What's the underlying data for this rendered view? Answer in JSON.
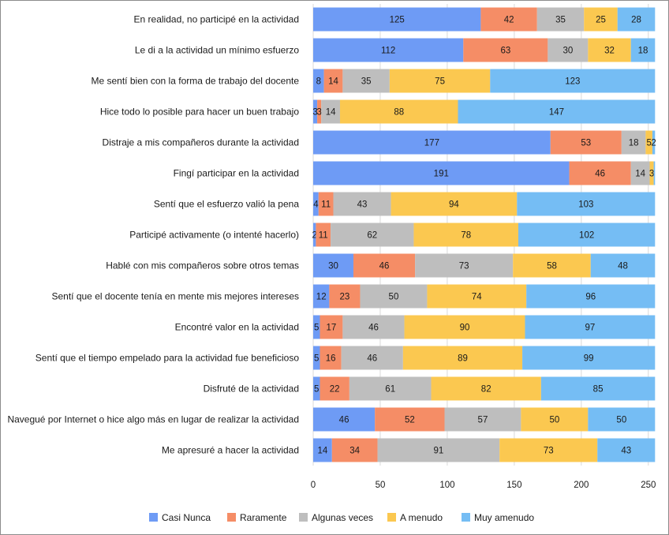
{
  "chart_data": {
    "type": "bar",
    "orientation": "horizontal",
    "stacked": true,
    "title": "",
    "xlabel": "",
    "ylabel": "",
    "xlim": [
      0,
      256
    ],
    "xticks": [
      0,
      50,
      100,
      150,
      200,
      250
    ],
    "grid": true,
    "legend_position": "bottom",
    "categories": [
      "En realidad, no participé en la actividad",
      "Le di a la actividad un mínimo esfuerzo",
      "Me sentí bien con la forma de trabajo del docente",
      "Hice todo lo posible para hacer un buen trabajo",
      "Distraje a mis compañeros durante la actividad",
      "Fingí participar en la actividad",
      "Sentí que el esfuerzo valió la pena",
      "Participé activamente (o intenté hacerlo)",
      "Hablé con mis compañeros sobre otros temas",
      "Sentí que el docente tenía en mente mis mejores intereses",
      "Encontré valor en la actividad",
      "Sentí que el tiempo empelado para la actividad fue beneficioso",
      "Disfruté de la actividad",
      "Navegué por Internet o hice algo más en lugar de realizar la actividad",
      "Me apresuré a hacer la actividad"
    ],
    "series": [
      {
        "name": "Casi Nunca",
        "color": "#6e9bf5",
        "values": [
          125,
          112,
          8,
          3,
          177,
          191,
          4,
          2,
          30,
          12,
          5,
          5,
          5,
          46,
          14
        ]
      },
      {
        "name": "Raramente",
        "color": "#f58d66",
        "values": [
          42,
          63,
          14,
          3,
          53,
          46,
          11,
          11,
          46,
          23,
          17,
          16,
          22,
          52,
          34
        ]
      },
      {
        "name": "Algunas veces",
        "color": "#bebebe",
        "values": [
          35,
          30,
          35,
          14,
          18,
          14,
          43,
          62,
          73,
          50,
          46,
          46,
          61,
          57,
          91
        ]
      },
      {
        "name": "A menudo",
        "color": "#fbc850",
        "values": [
          25,
          32,
          75,
          88,
          5,
          3,
          94,
          78,
          58,
          74,
          90,
          89,
          82,
          50,
          73
        ]
      },
      {
        "name": "Muy amenudo",
        "color": "#75bdf4",
        "values": [
          28,
          18,
          123,
          147,
          2,
          1,
          103,
          102,
          48,
          96,
          97,
          99,
          85,
          50,
          43
        ]
      }
    ],
    "segment_labels": [
      [
        "125",
        "42",
        "35",
        "25",
        "28"
      ],
      [
        "112",
        "63",
        "30",
        "32",
        "18"
      ],
      [
        "8",
        "14",
        "35",
        "75",
        "123"
      ],
      [
        "3",
        "3",
        "14",
        "88",
        "147"
      ],
      [
        "177",
        "53",
        "18",
        "5",
        "2"
      ],
      [
        "191",
        "46",
        "14",
        "3",
        ""
      ],
      [
        "4",
        "11",
        "43",
        "94",
        "103"
      ],
      [
        "2",
        "11",
        "62",
        "78",
        "102"
      ],
      [
        "30",
        "46",
        "73",
        "58",
        "48"
      ],
      [
        "12",
        "23",
        "50",
        "74",
        "96"
      ],
      [
        "5",
        "17",
        "46",
        "90",
        "97"
      ],
      [
        "5",
        "16",
        "46",
        "89",
        "99"
      ],
      [
        "5",
        "22",
        "61",
        "82",
        "85"
      ],
      [
        "46",
        "52",
        "57",
        "50",
        "50"
      ],
      [
        "14",
        "34",
        "91",
        "73",
        "43"
      ]
    ]
  }
}
